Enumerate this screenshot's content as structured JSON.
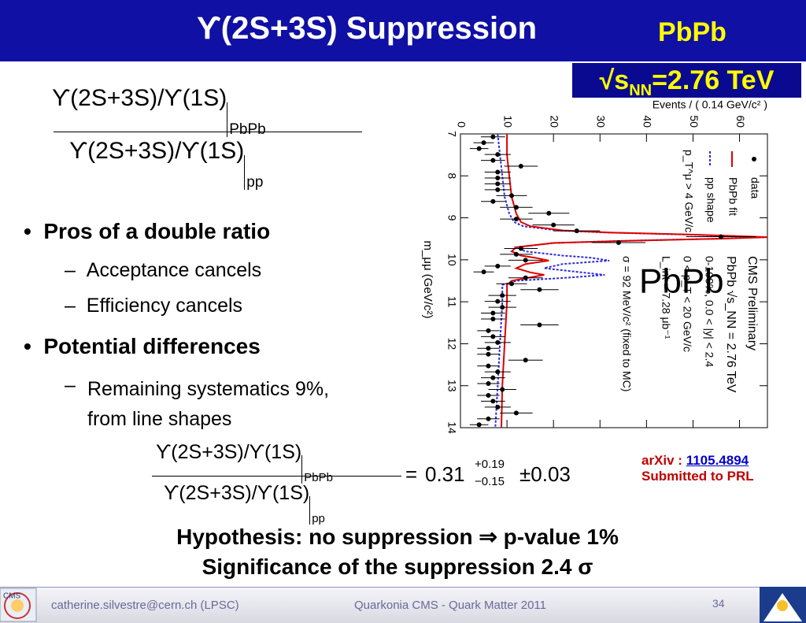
{
  "header": {
    "title": "ϒ(2S+3S) Suppression",
    "system": "PbPb",
    "energy": {
      "prefix": "√s",
      "sub": "NN",
      "suffix": "=2.76 TeV"
    }
  },
  "formula_top": {
    "numerator": "ϒ(2S+3S)/ϒ(1S)",
    "numerator_sub": "PbPb",
    "denominator": "ϒ(2S+3S)/ϒ(1S)",
    "denominator_sub": "pp"
  },
  "bullets": [
    {
      "text": "Pros of a double ratio",
      "items": [
        "Acceptance cancels",
        "Efficiency cancels"
      ]
    },
    {
      "text": "Potential differences",
      "items": [
        "Remaining systematics 9%, from line shapes"
      ]
    }
  ],
  "formula_result": {
    "numerator": "ϒ(2S+3S)/ϒ(1S)",
    "numerator_sub": "PbPb",
    "denominator": "ϒ(2S+3S)/ϒ(1S)",
    "denominator_sub": "pp",
    "equals": "=",
    "value": "0.31",
    "plus": "+0.19",
    "minus": "−0.15",
    "syst": "±0.03"
  },
  "arxiv": {
    "label": "arXiv : ",
    "id": "1105.4894",
    "note": "Submitted to PRL"
  },
  "conclusion": [
    "Hypothesis: no suppression ⇒ p-value 1%",
    "Significance of the suppression 2.4 σ"
  ],
  "footer": {
    "author": "catherine.silvestre@cern.ch (LPSC)",
    "event": "Quarkonia CMS - Quark Matter 2011",
    "page": "34"
  },
  "chart_data": {
    "type": "scatter",
    "x_label": "m_μμ (GeV/c²)",
    "y_label": "Events / ( 0.14 GeV/c² )",
    "xlim": [
      7,
      14
    ],
    "xticks": [
      7,
      8,
      9,
      10,
      11,
      12,
      13,
      14
    ],
    "ylim": [
      0,
      66
    ],
    "yticks": [
      0,
      10,
      20,
      30,
      40,
      50,
      60
    ],
    "legend_note": "p_T^μ > 4 GeV/c",
    "overlay": "PbPb",
    "annotations": [
      "CMS Preliminary",
      "PbPb √s_NN = 2.76 TeV",
      "0-100%, 0.0 < |y| < 2.4",
      "0 < p_T < 20 GeV/c",
      "L_int = 7.28 μb⁻¹",
      "σ = 92 MeV/c² (fixed to MC)"
    ],
    "series": [
      {
        "name": "data",
        "kind": "points",
        "color": "#000000",
        "x": [
          7.07,
          7.21,
          7.35,
          7.49,
          7.63,
          7.77,
          7.91,
          8.05,
          8.19,
          8.33,
          8.47,
          8.61,
          8.75,
          8.89,
          9.03,
          9.17,
          9.31,
          9.45,
          9.59,
          9.73,
          9.87,
          10.01,
          10.15,
          10.29,
          10.43,
          10.57,
          10.71,
          10.85,
          10.99,
          11.13,
          11.27,
          11.41,
          11.55,
          11.69,
          11.83,
          11.97,
          12.11,
          12.25,
          12.39,
          12.53,
          12.67,
          12.81,
          12.95,
          13.09,
          13.23,
          13.37,
          13.51,
          13.65,
          13.79,
          13.93
        ],
        "values": [
          7,
          5,
          4,
          8,
          7,
          13,
          8,
          8,
          8,
          8,
          11,
          7,
          12,
          19,
          12,
          20,
          25,
          56,
          34,
          13,
          12,
          14,
          8,
          5,
          14,
          11,
          17,
          9,
          8,
          9,
          7,
          7,
          17,
          6,
          7,
          8,
          6,
          6,
          14,
          6,
          8,
          7,
          6,
          9,
          6,
          7,
          8,
          12,
          6,
          4
        ],
        "errors": [
          2.6,
          2.2,
          2,
          2.8,
          2.6,
          3.6,
          2.8,
          2.8,
          2.8,
          2.8,
          3.3,
          2.6,
          3.5,
          4.4,
          3.5,
          4.5,
          5,
          7.5,
          5.8,
          3.6,
          3.5,
          3.7,
          2.8,
          2.2,
          3.7,
          3.3,
          4.1,
          3,
          2.8,
          3,
          2.6,
          2.6,
          4.1,
          2.4,
          2.6,
          2.8,
          2.4,
          2.4,
          3.7,
          2.4,
          2.8,
          2.6,
          2.4,
          3,
          2.4,
          2.6,
          2.8,
          3.5,
          2.4,
          2
        ]
      },
      {
        "name": "PbPb fit",
        "kind": "line",
        "color": "#e00000",
        "x": [
          7,
          7.5,
          8,
          8.5,
          8.9,
          9.1,
          9.2,
          9.3,
          9.35,
          9.4,
          9.46,
          9.5,
          9.55,
          9.6,
          9.7,
          9.8,
          9.9,
          9.95,
          10.02,
          10.1,
          10.2,
          10.3,
          10.36,
          10.42,
          10.5,
          10.6,
          11,
          12,
          13,
          14
        ],
        "values": [
          10,
          10,
          10.5,
          11,
          12,
          13,
          15,
          22,
          32,
          50,
          66,
          55,
          35,
          20,
          12,
          11,
          13,
          16,
          19,
          14,
          12,
          15,
          18,
          15,
          11,
          10,
          10,
          9.5,
          9,
          8.8
        ]
      },
      {
        "name": "pp shape",
        "kind": "dashed",
        "color": "#2a2ae0",
        "x": [
          7,
          7.5,
          8,
          8.5,
          8.9,
          9.1,
          9.2,
          9.3,
          9.35,
          9.4,
          9.46,
          9.5,
          9.55,
          9.6,
          9.7,
          9.8,
          9.9,
          9.95,
          10.02,
          10.1,
          10.2,
          10.3,
          10.36,
          10.42,
          10.5,
          10.6,
          11,
          12,
          13,
          14
        ],
        "values": [
          8,
          8.5,
          9,
          9.5,
          10.5,
          11.5,
          13.5,
          21,
          31,
          49,
          65,
          54,
          34,
          20,
          12,
          14,
          22,
          28,
          32,
          22,
          18,
          26,
          31,
          24,
          12,
          9,
          9,
          8.5,
          8,
          7.5
        ]
      }
    ]
  }
}
